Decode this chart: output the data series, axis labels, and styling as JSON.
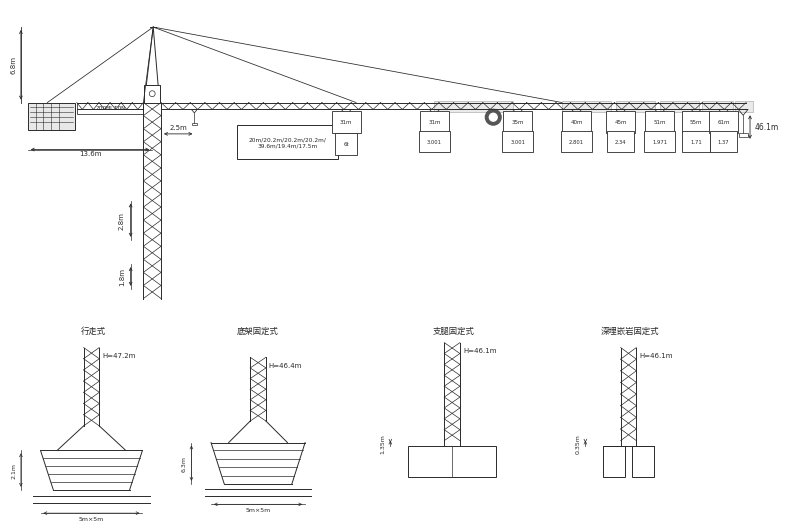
{
  "bg_color": "#ffffff",
  "line_color": "#2a2a2a",
  "boom_text": "20m/20.2m/20.2m/20.2m/\n39.6m/19.4m/17.5m",
  "dist_labels": [
    "31m",
    "35m",
    "40m",
    "45m",
    "51m",
    "55m",
    "61m"
  ],
  "dist_vals": [
    "3.001",
    "3.001",
    "2.801",
    "2.34",
    "1.971",
    "1.71",
    "1.37"
  ],
  "type_labels": [
    "行走式",
    "底架固定式",
    "支腿固定式",
    "深埋嵌岩固定式"
  ],
  "H_labels": [
    "H=47.2m",
    "H=46.4m",
    "H=46.1m",
    "H=46.1m"
  ],
  "dim1_labels": [
    "2.1m",
    "6.3m",
    "1.35m",
    "0.35m"
  ],
  "base_labels": [
    "5m×5m",
    "5m×5m",
    "",
    ""
  ],
  "label_136": "13.6m",
  "label_25": "2.5m",
  "label_68": "6.8m",
  "label_28": "2.8m",
  "label_18": "1.8m",
  "label_461": "46.1m",
  "label_6t": "6t"
}
